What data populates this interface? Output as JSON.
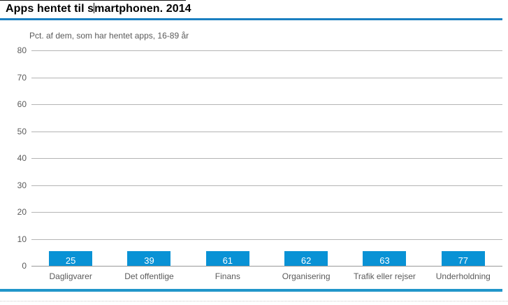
{
  "header": {
    "title": "Apps hentet til smartphonen. 2014",
    "title_before_caret": "Apps hentet til s",
    "title_after_caret": "martphonen. 2014"
  },
  "chart_data": {
    "type": "bar",
    "title": "Apps hentet til smartphonen. 2014",
    "subtitle": "Pct. af dem, som har hentet apps, 16-89 år",
    "categories": [
      "Dagligvarer",
      "Det offentlige",
      "Finans",
      "Organisering",
      "Trafik eller rejser",
      "Underholdning"
    ],
    "values": [
      25,
      39,
      61,
      62,
      63,
      77
    ],
    "value_labels_inside_bars": true,
    "xlabel": "",
    "ylabel": "",
    "ylim": [
      0,
      80
    ],
    "yticks": [
      0,
      10,
      20,
      30,
      40,
      50,
      60,
      70,
      80
    ],
    "grid": true,
    "legend": "none"
  },
  "colors": {
    "bar": "#0992d5",
    "bar_value_text": "#ffffff",
    "title_rule": "#1b7fc0",
    "bottom_rule": "#2196ca",
    "gridline": "#b4b4b4",
    "axis_line": "#9a9a9a",
    "axis_text": "#5a5a5a"
  }
}
